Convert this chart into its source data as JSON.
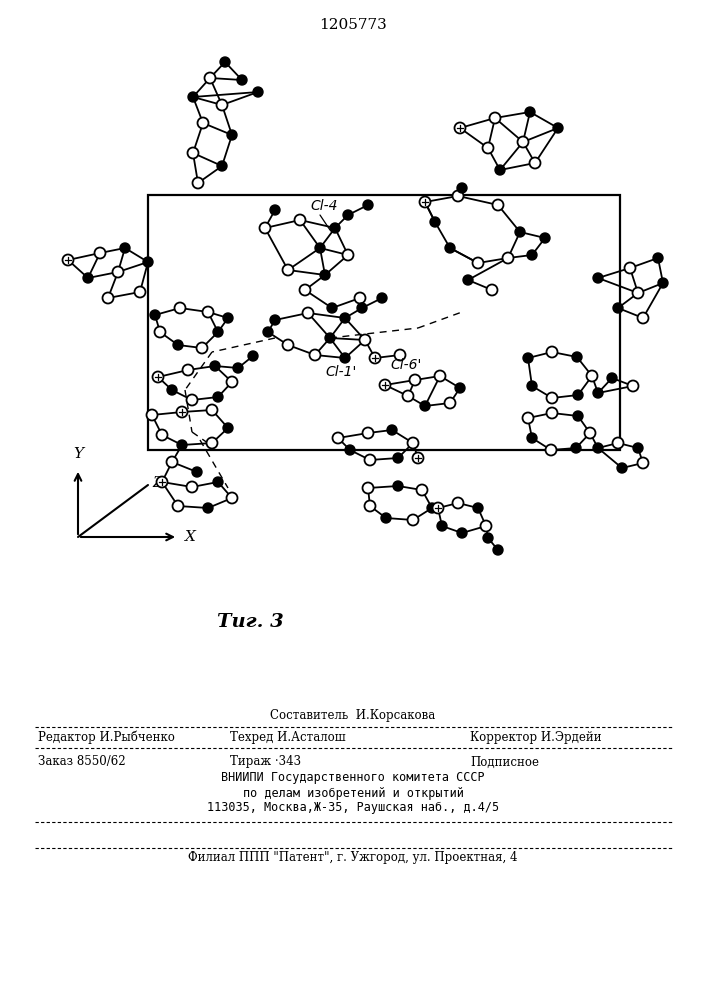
{
  "patent_number": "1205773",
  "figure_label": "Τиг. 3",
  "cl4_label": "Cl-4",
  "cl1_label": "Cl-1'",
  "cl6_label": "Cl-6'",
  "footer": {
    "line1_center": "Составитель  И.Корсакова",
    "line2_left": "Редактор И.Рыбченко",
    "line2_center": "Техред И.Асталош",
    "line2_right": "Корректор И.Эрдейи",
    "line3_left": "Заказ 8550/62",
    "line3_center": "Тираж ·343",
    "line3_right": "Подписное",
    "line4": "ВНИИПИ Государственного комитета СССР",
    "line5": "по делам изобретений и открытий",
    "line6": "113035, Москва,Ж-35, Раушская наб., д.4/5",
    "line7": "Филиал ППП \"Патент\", г. Ужгород, ул. Проектная, 4"
  },
  "bg_color": "#ffffff",
  "line_color": "#000000"
}
